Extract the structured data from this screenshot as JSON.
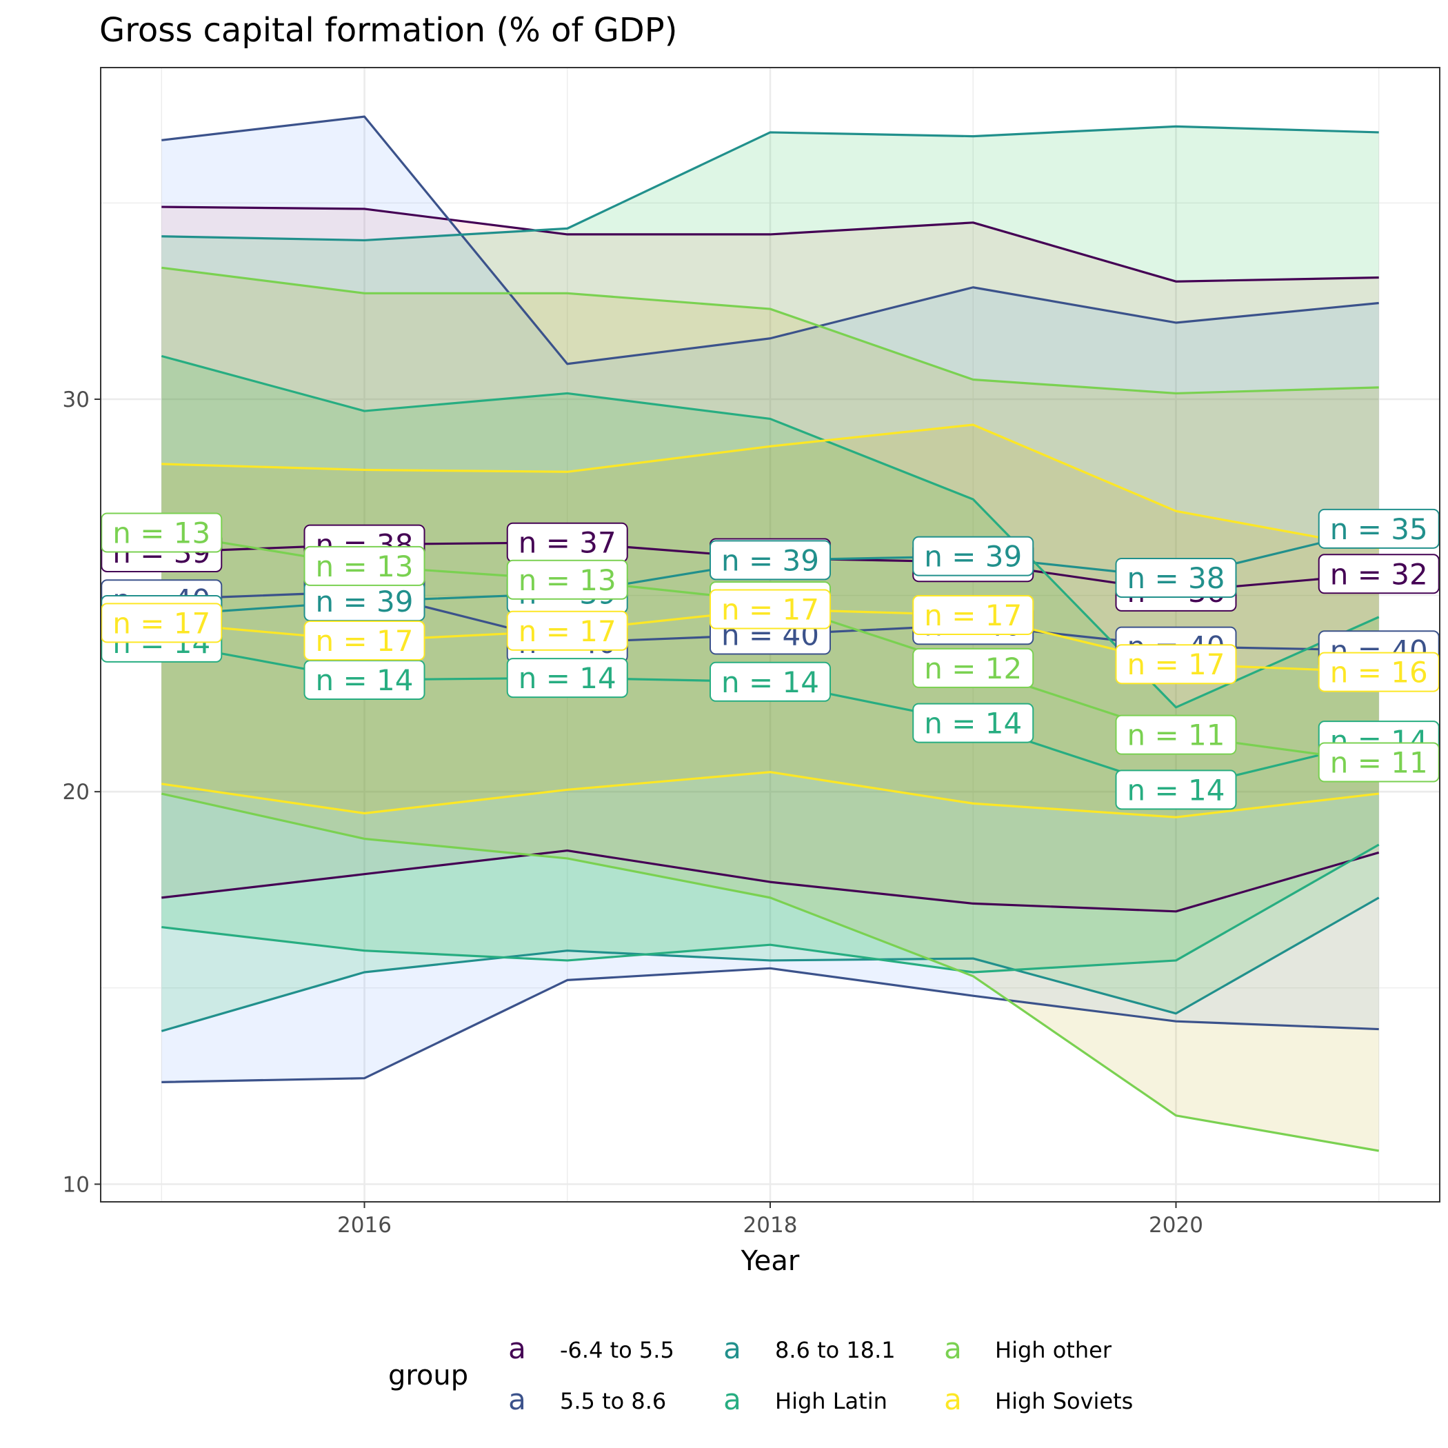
{
  "chart_data": {
    "type": "line",
    "title": "Gross capital formation (% of GDP)",
    "xlabel": "Year",
    "ylabel": "",
    "xlim": [
      2014.7,
      2021.3
    ],
    "ylim": [
      9.55,
      38.45
    ],
    "x_ticks": [
      2016,
      2018,
      2020
    ],
    "y_ticks": [
      10,
      20,
      30
    ],
    "x": [
      2015,
      2016,
      2017,
      2018,
      2019,
      2020,
      2021
    ],
    "legend": {
      "title": "group",
      "key_glyph": "a",
      "position": "bottom"
    },
    "series": [
      {
        "name": "-6.4 to 5.5",
        "color": "#440154",
        "upper": [
          34.9,
          34.85,
          34.2,
          34.2,
          34.5,
          33.0,
          33.1
        ],
        "lower": [
          17.3,
          17.9,
          18.5,
          17.7,
          17.15,
          16.95,
          18.45
        ],
        "mean": [
          26.1,
          26.3,
          26.35,
          25.95,
          25.85,
          25.1,
          25.55
        ],
        "n": [
          39,
          38,
          37,
          38,
          38,
          36,
          32
        ]
      },
      {
        "name": "5.5 to 8.6",
        "color": "#3B528B",
        "upper": [
          36.6,
          37.2,
          30.9,
          31.55,
          32.85,
          31.95,
          32.45
        ],
        "lower": [
          12.6,
          12.7,
          15.2,
          15.5,
          14.8,
          14.15,
          13.95
        ],
        "mean": [
          24.9,
          25.1,
          23.8,
          24.0,
          24.25,
          23.7,
          23.6
        ],
        "n": [
          40,
          40,
          40,
          40,
          40,
          40,
          40
        ]
      },
      {
        "name": "8.6 to 18.1",
        "color": "#21908C",
        "upper": [
          34.15,
          34.05,
          34.35,
          36.8,
          36.7,
          36.95,
          36.8
        ],
        "lower": [
          13.9,
          15.4,
          15.95,
          15.7,
          15.75,
          14.35,
          17.3
        ],
        "mean": [
          24.5,
          24.85,
          25.05,
          25.9,
          26.0,
          25.45,
          26.7
        ],
        "n": [
          39,
          39,
          39,
          39,
          39,
          38,
          35
        ]
      },
      {
        "name": "High Latin",
        "color": "#27AD81",
        "upper": [
          31.1,
          29.7,
          30.15,
          29.5,
          27.45,
          22.15,
          24.45
        ],
        "lower": [
          16.55,
          15.95,
          15.7,
          16.1,
          15.4,
          15.7,
          18.65
        ],
        "mean": [
          23.8,
          22.85,
          22.9,
          22.8,
          21.75,
          20.05,
          21.3
        ],
        "n": [
          14,
          14,
          14,
          14,
          14,
          14,
          14
        ]
      },
      {
        "name": "High other",
        "color": "#7AD151",
        "upper": [
          33.35,
          32.7,
          32.7,
          32.3,
          30.5,
          30.15,
          30.3
        ],
        "lower": [
          19.95,
          18.8,
          18.3,
          17.3,
          15.3,
          11.75,
          10.85
        ],
        "mean": [
          26.6,
          25.75,
          25.4,
          24.85,
          23.15,
          21.45,
          20.75
        ],
        "n": [
          13,
          13,
          13,
          13,
          12,
          11,
          11
        ]
      },
      {
        "name": "High Soviets",
        "color": "#FDE725",
        "upper": [
          28.35,
          28.2,
          28.15,
          28.8,
          29.35,
          27.15,
          26.2
        ],
        "lower": [
          20.2,
          19.45,
          20.05,
          20.5,
          19.7,
          19.35,
          19.95
        ],
        "mean": [
          24.3,
          23.85,
          24.1,
          24.65,
          24.5,
          23.25,
          23.05
        ],
        "n": [
          17,
          17,
          17,
          17,
          17,
          17,
          16
        ]
      }
    ]
  }
}
